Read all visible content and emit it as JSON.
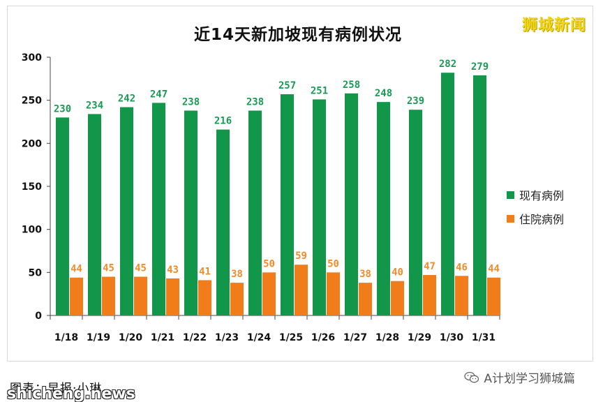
{
  "brand": "狮城新闻",
  "caption": "图表：早报·小琳",
  "site_watermark": "shicheng.news",
  "wechat_account": "A计划学习狮城篇",
  "icons": {
    "wechat": "wechat-icon"
  },
  "chart_data": {
    "type": "bar",
    "title": "近14天新加坡现有病例状况",
    "xlabel": "",
    "ylabel": "",
    "categories": [
      "1/18",
      "1/19",
      "1/20",
      "1/21",
      "1/22",
      "1/23",
      "1/24",
      "1/25",
      "1/26",
      "1/27",
      "1/28",
      "1/29",
      "1/30",
      "1/31"
    ],
    "series": [
      {
        "name": "现有病例",
        "color": "#12974a",
        "label_color": "#1a9a55",
        "values": [
          230,
          234,
          242,
          247,
          238,
          216,
          238,
          257,
          251,
          258,
          248,
          239,
          282,
          279
        ]
      },
      {
        "name": "住院病例",
        "color": "#f07d1a",
        "label_color": "#f08d2a",
        "values": [
          44,
          45,
          45,
          43,
          41,
          38,
          50,
          59,
          50,
          38,
          40,
          47,
          46,
          44
        ]
      }
    ],
    "ylim": [
      0,
      300
    ],
    "yticks": [
      0,
      50,
      100,
      150,
      200,
      250,
      300
    ],
    "grid": false,
    "data_labels": true,
    "legend_position": "right"
  }
}
